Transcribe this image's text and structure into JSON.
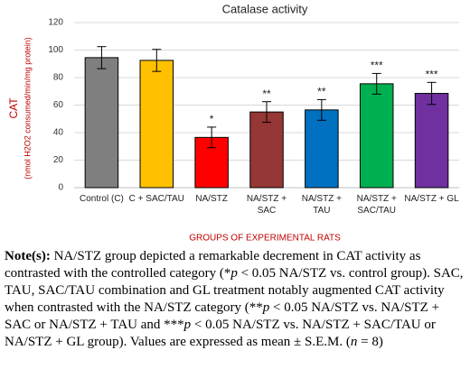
{
  "chart_data": {
    "type": "bar",
    "title": "Catalase activity",
    "y_label": "CAT",
    "y_label_sub": "(nmol H2O2 consumed/min/mg protein)",
    "x_label": "GROUPS OF EXPERIMENTAL RATS",
    "categories": [
      "Control (C)",
      "C + SAC/TAU",
      "NA/STZ",
      "NA/STZ + SAC",
      "NA/STZ + TAU",
      "NA/STZ + SAC/TAU",
      "NA/STZ + GL"
    ],
    "values": [
      94.5,
      92.5,
      36.5,
      55,
      56.5,
      75.5,
      68.5
    ],
    "errors": [
      8,
      8,
      7.5,
      7.5,
      7.5,
      7.5,
      8
    ],
    "significance": [
      null,
      null,
      "*",
      "**",
      "**",
      "***",
      "***"
    ],
    "colors": [
      "#7f7f7f",
      "#ffc000",
      "#ff0000",
      "#953735",
      "#0070c0",
      "#00b050",
      "#7030a0"
    ],
    "ylim": [
      0,
      120
    ],
    "yticks": [
      0,
      20,
      40,
      60,
      80,
      100,
      120
    ],
    "grid": true
  },
  "note": {
    "label": "Note(s):",
    "runs": [
      {
        "text": " NA/STZ group depicted a remarkable decrement in CAT activity as contrasted with the controlled category (*",
        "italic": false
      },
      {
        "text": "p",
        "italic": true
      },
      {
        "text": " < 0.05 NA/STZ vs. control group). SAC, TAU, SAC/TAU combination and GL treatment notably augmented CAT activity when contrasted with the NA/STZ category (**",
        "italic": false
      },
      {
        "text": "p",
        "italic": true
      },
      {
        "text": " < 0.05 NA/STZ vs. NA/STZ + SAC or NA/STZ + TAU and ***",
        "italic": false
      },
      {
        "text": "p",
        "italic": true
      },
      {
        "text": " < 0.05 NA/STZ vs.  NA/STZ + SAC/TAU or NA/STZ + GL group). Values are expressed as mean ± S.E.M. (",
        "italic": false
      },
      {
        "text": "n",
        "italic": true
      },
      {
        "text": " = 8)",
        "italic": false
      }
    ]
  }
}
